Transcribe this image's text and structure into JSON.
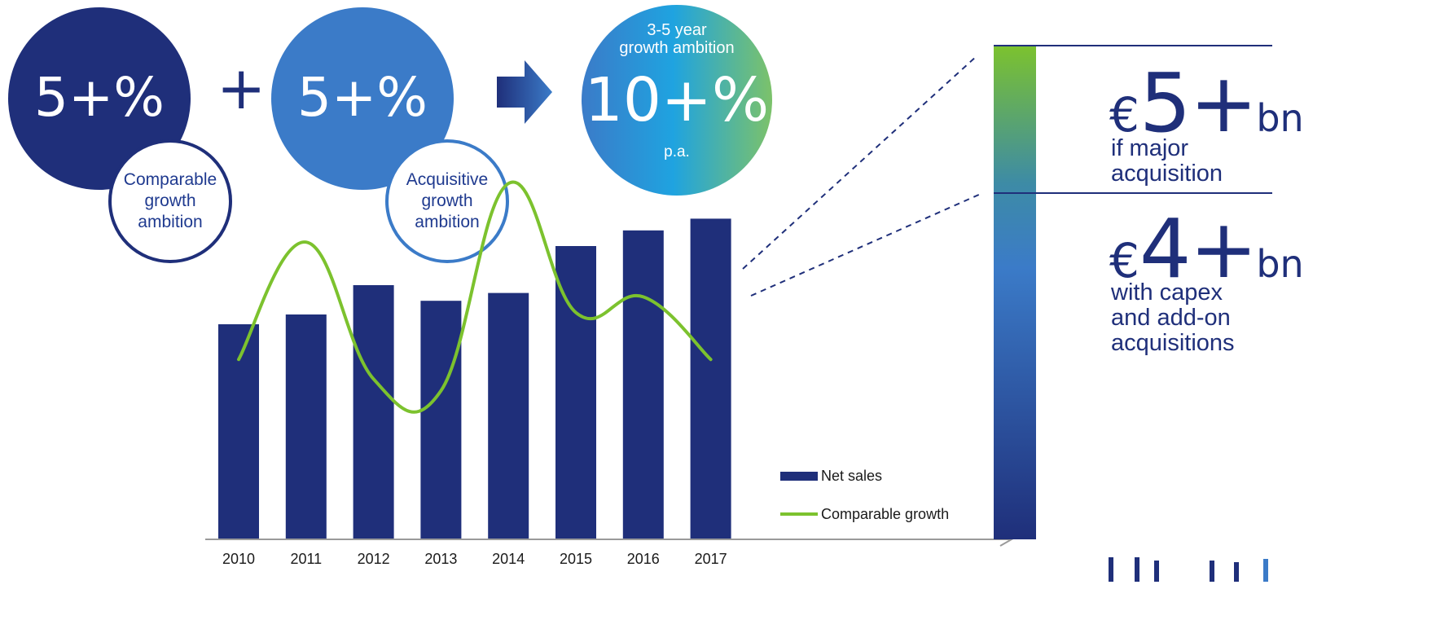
{
  "top": {
    "comparable": {
      "value": "5+%",
      "label": "Comparable\ngrowth\nambition"
    },
    "plus": "+",
    "acquisitive": {
      "value": "5+%",
      "label": "Acquisitive\ngrowth\nambition"
    },
    "result": {
      "header": "3-5 year\ngrowth ambition",
      "value": "10+%",
      "footer": "p.a."
    }
  },
  "right": {
    "upper": {
      "euro": "€",
      "number": "5+",
      "unit": "bn",
      "desc": "if major\nacquisition"
    },
    "lower": {
      "euro": "€",
      "number": "4+",
      "unit": "bn",
      "desc": "with capex\nand add-on\nacquisitions"
    }
  },
  "colors": {
    "navy": "#1f2f7a",
    "blue": "#3b7bc8",
    "green": "#7cc22e",
    "axis": "#9a9a9a"
  },
  "chart_data": {
    "type": "bar",
    "title": "",
    "xlabel": "",
    "ylabel": "",
    "categories": [
      "2010",
      "2011",
      "2012",
      "2013",
      "2014",
      "2015",
      "2016",
      "2017"
    ],
    "series": [
      {
        "name": "Net sales",
        "type": "bar",
        "color": "#1f2f7a",
        "values": [
          55,
          57.5,
          65,
          61,
          63,
          75,
          79,
          82
        ]
      },
      {
        "name": "Comparable growth",
        "type": "line",
        "color": "#7cc22e",
        "values": [
          46,
          76,
          41,
          38,
          91,
          58,
          62,
          46
        ]
      }
    ],
    "ylim": [
      0,
      100
    ],
    "grid": false,
    "legend": "bottom-right",
    "axis_ticks_y": false
  }
}
